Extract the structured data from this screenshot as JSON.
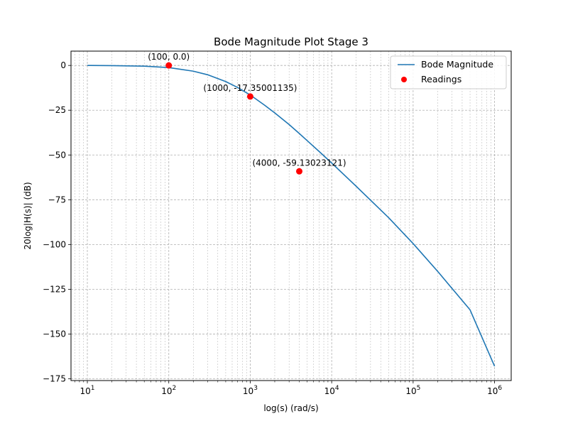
{
  "chart_data": {
    "type": "line",
    "title": "Bode Magnitude Plot Stage 3",
    "xlabel": "log(s) (rad/s)",
    "ylabel": "20log|H(s)| (dB)",
    "xscale": "log",
    "xlim": [
      6.3,
      1600000
    ],
    "ylim": [
      -176,
      8
    ],
    "x_ticks": [
      10,
      100,
      1000,
      10000,
      100000,
      1000000
    ],
    "x_tick_labels": [
      {
        "base": "10",
        "exp": "1"
      },
      {
        "base": "10",
        "exp": "2"
      },
      {
        "base": "10",
        "exp": "3"
      },
      {
        "base": "10",
        "exp": "4"
      },
      {
        "base": "10",
        "exp": "5"
      },
      {
        "base": "10",
        "exp": "6"
      }
    ],
    "y_ticks": [
      0,
      -25,
      -50,
      -75,
      -100,
      -125,
      -150,
      -175
    ],
    "y_tick_labels": [
      "0",
      "−25",
      "−50",
      "−75",
      "−100",
      "−125",
      "−150",
      "−175"
    ],
    "grid": true,
    "legend_position": "top-right",
    "series": [
      {
        "name": "Bode Magnitude",
        "kind": "line",
        "color": "#1f77b4",
        "x": [
          10,
          20,
          50,
          100,
          200,
          300,
          500,
          700,
          1000,
          1500,
          2000,
          3000,
          4000,
          5000,
          7000,
          10000,
          20000,
          50000,
          100000,
          200000,
          500000,
          1000000
        ],
        "y": [
          0,
          -0.1,
          -0.4,
          -1.2,
          -3.2,
          -5.2,
          -9.0,
          -12.3,
          -16.5,
          -22.2,
          -26.5,
          -33.0,
          -38.0,
          -42.0,
          -48.0,
          -54.5,
          -67.5,
          -85.0,
          -99.5,
          -115.0,
          -136.5,
          -168.0
        ]
      },
      {
        "name": "Readings",
        "kind": "scatter",
        "color": "#ff0000",
        "x": [
          100,
          1000,
          4000
        ],
        "y": [
          0.0,
          -17.35001135,
          -59.13023121
        ]
      }
    ],
    "annotations": [
      {
        "text": "(100, 0.0)",
        "x": 100,
        "y": 0.0
      },
      {
        "text": "(1000, -17.35001135)",
        "x": 1000,
        "y": -17.35001135
      },
      {
        "text": "(4000, -59.13023121)",
        "x": 4000,
        "y": -59.13023121
      }
    ]
  }
}
